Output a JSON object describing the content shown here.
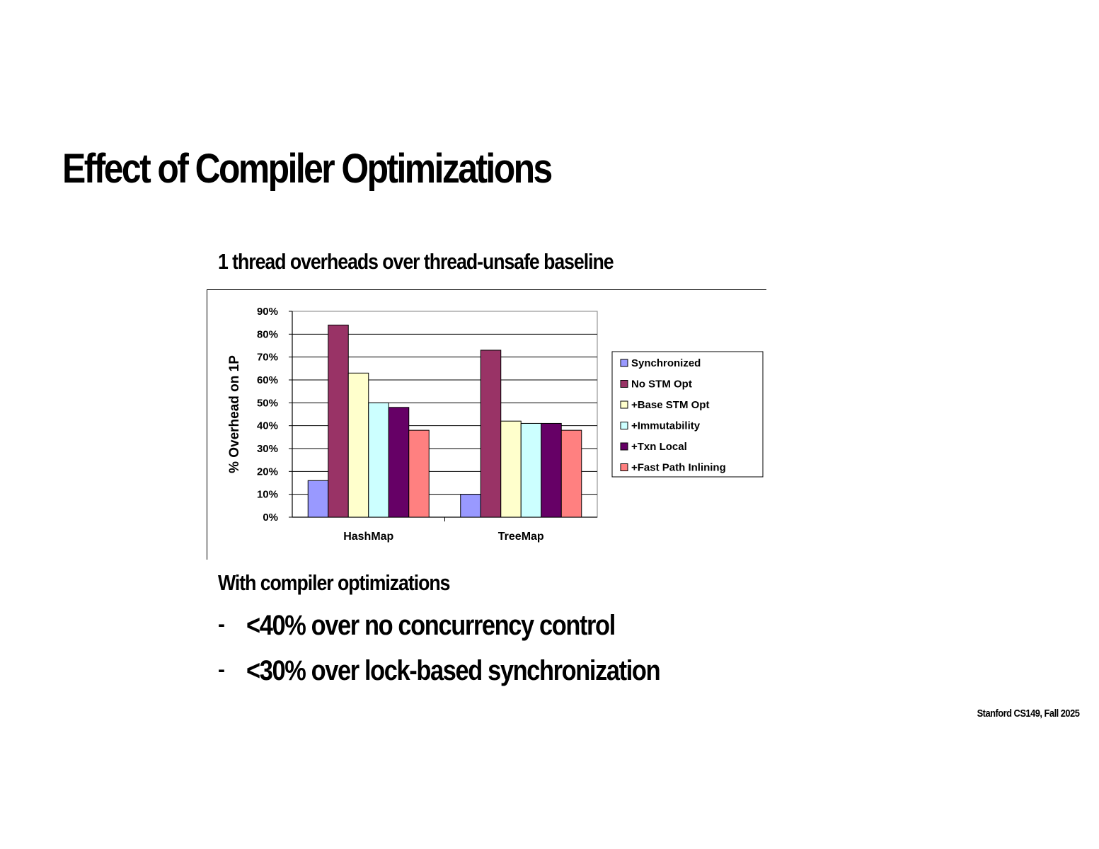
{
  "slide": {
    "title": "Effect of Compiler Optimizations",
    "chart_heading": "1 thread overheads over thread-unsafe baseline",
    "lead": "With compiler optimizations",
    "bullet_marker": "-",
    "bullets": [
      "<40% over no concurrency control",
      "<30% over lock-based synchronization"
    ],
    "footer": "Stanford CS149, Fall 2025"
  },
  "chart_data": {
    "type": "bar",
    "title": "",
    "xlabel": "",
    "ylabel": "% Overhead on 1P",
    "categories": [
      "HashMap",
      "TreeMap"
    ],
    "ylim": [
      0,
      90
    ],
    "yticks": [
      "0%",
      "10%",
      "20%",
      "30%",
      "40%",
      "50%",
      "60%",
      "70%",
      "80%",
      "90%"
    ],
    "grid": true,
    "legend_position": "right",
    "series": [
      {
        "name": "Synchronized",
        "color": "#9999ff",
        "values": [
          16,
          10
        ]
      },
      {
        "name": "No STM Opt",
        "color": "#993366",
        "values": [
          84,
          73
        ]
      },
      {
        "name": "+Base STM Opt",
        "color": "#ffffcc",
        "values": [
          63,
          42
        ]
      },
      {
        "name": "+Immutability",
        "color": "#ccffff",
        "values": [
          50,
          41
        ]
      },
      {
        "name": "+Txn Local",
        "color": "#660066",
        "values": [
          48,
          41
        ]
      },
      {
        "name": "+Fast Path Inlining",
        "color": "#ff8080",
        "values": [
          38,
          38
        ]
      }
    ]
  }
}
